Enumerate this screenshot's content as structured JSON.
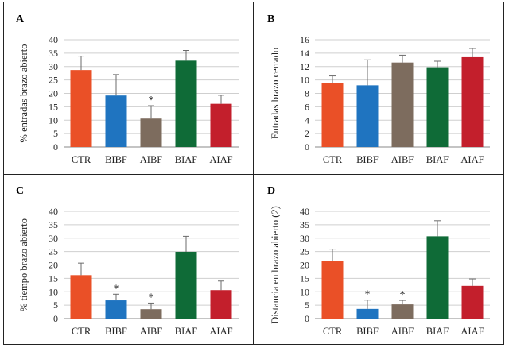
{
  "colors": {
    "CTR": "#ea5027",
    "BIBF": "#1f74c0",
    "AIBF": "#7d6c5e",
    "BIAF": "#0f6b37",
    "AIAF": "#c31f2c",
    "grid": "#cfcfcf",
    "axis": "#8a8a8a",
    "error": "#6b6b6b"
  },
  "chart_data": [
    {
      "panel": "A",
      "type": "bar",
      "ylabel": "% entradas brazo abierto",
      "categories": [
        "CTR",
        "BIBF",
        "AIBF",
        "BIAF",
        "AIAF"
      ],
      "values": [
        28.7,
        19.2,
        10.6,
        32.2,
        16.1
      ],
      "errors": [
        5.2,
        7.8,
        4.8,
        3.8,
        3.2
      ],
      "significant": [
        false,
        false,
        true,
        false,
        false
      ],
      "significance_mark": "*",
      "ylim": [
        0,
        40
      ],
      "yticks": [
        "0",
        "5",
        "10",
        "15",
        "20",
        "25",
        "30",
        "35",
        "40"
      ],
      "grid": true
    },
    {
      "panel": "B",
      "type": "bar",
      "ylabel": "Entradas brazo cerrado",
      "categories": [
        "CTR",
        "BIBF",
        "AIBF",
        "BIAF",
        "AIAF"
      ],
      "values": [
        9.5,
        9.2,
        12.6,
        11.9,
        13.4
      ],
      "errors": [
        1.1,
        3.8,
        1.1,
        0.9,
        1.3
      ],
      "significant": [
        false,
        false,
        false,
        false,
        false
      ],
      "significance_mark": "*",
      "ylim": [
        0,
        16
      ],
      "yticks": [
        "0",
        "2",
        "4",
        "6",
        "8",
        "10",
        "12",
        "14",
        "16"
      ],
      "grid": true
    },
    {
      "panel": "C",
      "type": "bar",
      "ylabel": "% tiempo brazo abierto",
      "categories": [
        "CTR",
        "BIBF",
        "AIBF",
        "BIAF",
        "AIAF"
      ],
      "values": [
        16.2,
        6.8,
        3.5,
        24.9,
        10.6
      ],
      "errors": [
        4.5,
        2.3,
        2.3,
        5.8,
        3.4
      ],
      "significant": [
        false,
        true,
        true,
        false,
        false
      ],
      "significance_mark": "*",
      "ylim": [
        0,
        40
      ],
      "yticks": [
        "0",
        "5",
        "10",
        "15",
        "20",
        "25",
        "30",
        "35",
        "40"
      ],
      "grid": true
    },
    {
      "panel": "D",
      "type": "bar",
      "ylabel": "Distancia en brazo abierto (2)",
      "categories": [
        "CTR",
        "BIBF",
        "AIBF",
        "BIAF",
        "AIAF"
      ],
      "values": [
        21.6,
        3.6,
        5.3,
        30.7,
        12.2
      ],
      "errors": [
        4.3,
        3.3,
        1.5,
        5.8,
        2.6
      ],
      "significant": [
        false,
        true,
        true,
        false,
        false
      ],
      "significance_mark": "*",
      "ylim": [
        0,
        40
      ],
      "yticks": [
        "0",
        "5",
        "10",
        "15",
        "20",
        "25",
        "30",
        "35",
        "40"
      ],
      "grid": true
    }
  ]
}
